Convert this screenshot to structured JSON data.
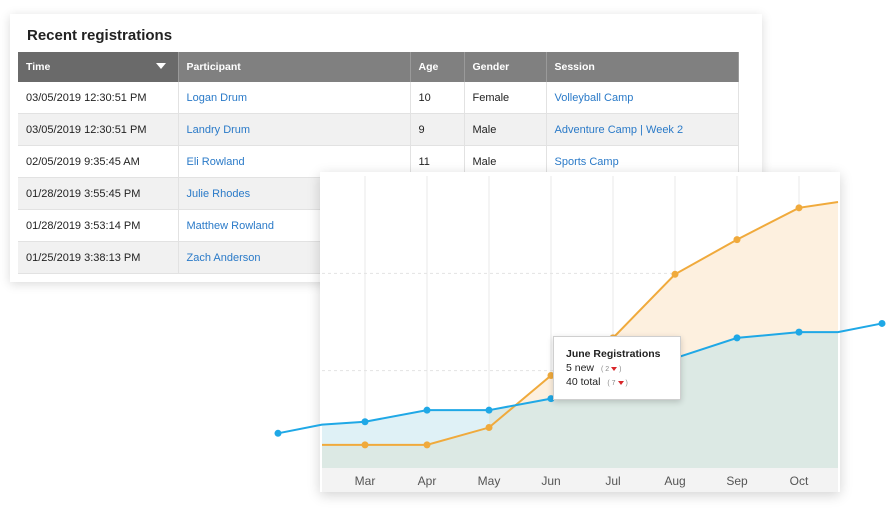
{
  "registrations": {
    "title": "Recent registrations",
    "columns": [
      "Time",
      "Participant",
      "Age",
      "Gender",
      "Session"
    ],
    "rows": [
      [
        "03/05/2019 12:30:51 PM",
        "Logan Drum",
        "10",
        "Female",
        "Volleyball Camp"
      ],
      [
        "03/05/2019 12:30:51 PM",
        "Landry Drum",
        "9",
        "Male",
        "Adventure Camp | Week 2"
      ],
      [
        "02/05/2019 9:35:45 AM",
        "Eli Rowland",
        "11",
        "Male",
        "Sports Camp"
      ],
      [
        "01/28/2019 3:55:45 PM",
        "Julie Rhodes",
        "",
        "",
        ""
      ],
      [
        "01/28/2019 3:53:14 PM",
        "Matthew Rowland",
        "",
        "",
        ""
      ],
      [
        "01/25/2019 3:38:13 PM",
        "Zach Anderson",
        "",
        "",
        ""
      ]
    ]
  },
  "tooltip": {
    "title": "June Registrations",
    "new_label": "5 new",
    "new_delta": "( 2",
    "total_label": "40 total",
    "total_delta": "( 7"
  },
  "colors": {
    "orange_series": "#f0aa3c",
    "blue_series": "#1fa8e6",
    "orange_fill": "#fdf0df",
    "blue_fill": "#dce9e4",
    "header_gray": "#808080",
    "link_blue": "#2a7ac8",
    "down_red": "#d9262a"
  },
  "chart_data": {
    "type": "area",
    "categories": [
      "Mar",
      "Apr",
      "May",
      "Jun",
      "Jul",
      "Aug",
      "Sep",
      "Oct"
    ],
    "series": [
      {
        "values": [
          8,
          8,
          14,
          32,
          45,
          67,
          79,
          90
        ]
      },
      {
        "values": [
          16,
          20,
          20,
          24,
          34,
          38,
          45,
          47
        ]
      }
    ],
    "ylim": [
      0,
      110
    ],
    "grid": true
  }
}
